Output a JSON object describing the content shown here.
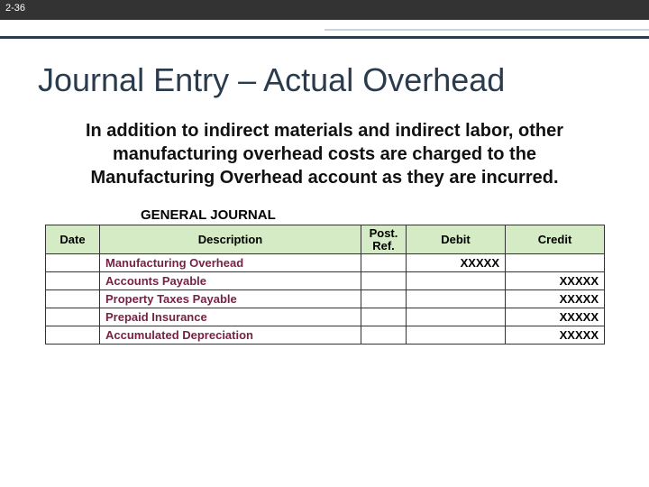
{
  "slide_number": "2-36",
  "title": "Journal Entry – Actual Overhead",
  "body_text": "In addition to indirect materials and indirect labor, other manufacturing overhead costs are charged to the Manufacturing Overhead account as they are incurred.",
  "journal": {
    "heading": "GENERAL JOURNAL",
    "columns": {
      "date": "Date",
      "description": "Description",
      "post_ref_line1": "Post.",
      "post_ref_line2": "Ref.",
      "debit": "Debit",
      "credit": "Credit"
    },
    "rows": [
      {
        "desc": "Manufacturing Overhead",
        "indent": false,
        "debit": "XXXXX",
        "credit": ""
      },
      {
        "desc": "Accounts Payable",
        "indent": true,
        "debit": "",
        "credit": "XXXXX"
      },
      {
        "desc": "Property Taxes Payable",
        "indent": true,
        "debit": "",
        "credit": "XXXXX"
      },
      {
        "desc": "Prepaid Insurance",
        "indent": true,
        "debit": "",
        "credit": "XXXXX"
      },
      {
        "desc": "Accumulated Depreciation",
        "indent": true,
        "debit": "",
        "credit": "XXXXX"
      }
    ]
  },
  "colors": {
    "header_bg": "#d5ebc5",
    "entry_text": "#772244",
    "topbar": "#333333",
    "rule_dark": "#2a3b4d"
  }
}
